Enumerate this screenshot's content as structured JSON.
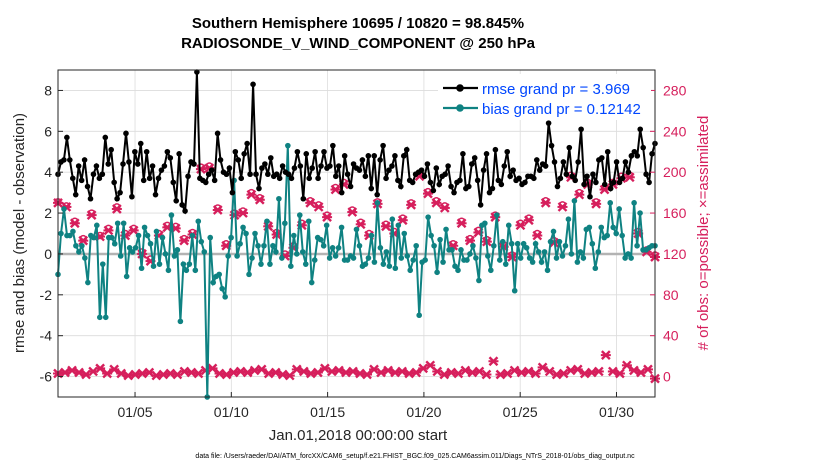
{
  "chart_data": {
    "type": "line",
    "title_line1": "Southern Hemisphere 10695 / 10820 = 98.845%",
    "title_line2": "RADIOSONDE_V_WIND_COMPONENT @ 250 hPa",
    "xlabel": "Jan.01,2018 00:00:00 start",
    "ylabel_left": "rmse and bias (model - observation)",
    "ylabel_right": "# of obs: o=possible; ×=assimilated",
    "xlim": [
      1,
      32
    ],
    "ylim_left": [
      -7,
      9
    ],
    "ylim_right": [
      -20,
      300
    ],
    "x_ticks": [
      5,
      10,
      15,
      20,
      25,
      30
    ],
    "x_tick_labels": [
      "01/05",
      "01/10",
      "01/15",
      "01/20",
      "01/25",
      "01/30"
    ],
    "y_ticks_left": [
      -6,
      -4,
      -2,
      0,
      2,
      4,
      6,
      8
    ],
    "y_tick_labels_left": [
      "-6",
      "-4",
      "-2",
      "0",
      "2",
      "4",
      "6",
      "8"
    ],
    "y_ticks_right": [
      0,
      40,
      80,
      120,
      160,
      200,
      240,
      280
    ],
    "y_tick_labels_right": [
      "0",
      "40",
      "80",
      "120",
      "160",
      "200",
      "240",
      "280"
    ],
    "grid": true,
    "legend_position": "top-right",
    "colors": {
      "rmse": "#000000",
      "bias": "#0f8282",
      "obs": "#d61f5c",
      "zero_line": "#b3b3b3",
      "legend_text": "#0046ff"
    },
    "series": [
      {
        "name": "rmse grand pr = 3.969",
        "color": "#000000",
        "values": [
          3.9,
          4.5,
          4.6,
          5.7,
          4.6,
          3.7,
          2.9,
          4.3,
          3.6,
          4.6,
          3.3,
          2.7,
          3.9,
          4.3,
          3.7,
          3.9,
          5.7,
          4.4,
          5.1,
          3.5,
          2.7,
          3.0,
          4.4,
          5.9,
          4.5,
          2.8,
          5.0,
          4.4,
          5.4,
          3.6,
          5.0,
          3.7,
          4.3,
          2.9,
          3.7,
          4.1,
          4.3,
          5.0,
          4.7,
          3.5,
          2.6,
          4.9,
          2.4,
          2.1,
          3.8,
          4.5,
          4.4,
          8.9,
          3.7,
          3.6,
          3.5,
          3.9,
          4.1,
          3.6,
          5.9,
          4.6,
          4.0,
          3.9,
          4.2,
          3.0,
          5.0,
          4.6,
          3.7,
          4.9,
          5.4,
          3.9,
          8.3,
          3.9,
          3.2,
          4.2,
          4.4,
          3.9,
          4.7,
          3.8,
          3.9,
          3.7,
          4.3,
          4.0,
          3.9,
          3.7,
          4.2,
          5.0,
          4.3,
          2.7,
          4.9,
          3.7,
          4.2,
          5.0,
          3.7,
          4.3,
          5.0,
          4.2,
          4.3,
          5.3,
          3.8,
          4.3,
          3.0,
          4.8,
          3.9,
          3.3,
          4.4,
          4.2,
          4.1,
          4.6,
          3.8,
          4.8,
          3.2,
          4.8,
          2.9,
          4.6,
          5.3,
          3.7,
          4.1,
          4.3,
          4.8,
          3.6,
          3.3,
          4.8,
          5.1,
          3.6,
          3.5,
          3.9,
          4.0,
          4.1,
          3.8,
          4.4,
          3.5,
          3.1,
          4.2,
          3.4,
          3.8,
          3.9,
          4.3,
          3.3,
          3.0,
          3.5,
          3.6,
          4.9,
          3.2,
          3.3,
          4.4,
          4.7,
          3.6,
          2.4,
          4.1,
          4.9,
          3.0,
          3.2,
          5.1,
          3.6,
          3.4,
          4.3,
          5.0,
          3.8,
          4.1,
          3.6,
          3.7,
          3.4,
          3.5,
          3.8,
          3.8,
          3.7,
          4.6,
          4.1,
          4.4,
          4.3,
          6.4,
          5.3,
          4.5,
          3.3,
          3.7,
          4.5,
          3.9,
          5.2,
          3.8,
          3.6,
          4.5,
          6.1,
          3.4,
          3.8,
          2.8,
          3.9,
          3.5,
          4.6,
          4.7,
          3.4,
          5.0,
          3.2,
          3.5,
          4.5,
          3.5,
          3.7,
          4.5,
          4.0,
          4.8,
          5.0,
          4.8,
          6.1,
          5.2,
          3.9,
          3.5,
          4.9,
          5.4
        ],
        "_note": ""
      }
    ]
  }
}
